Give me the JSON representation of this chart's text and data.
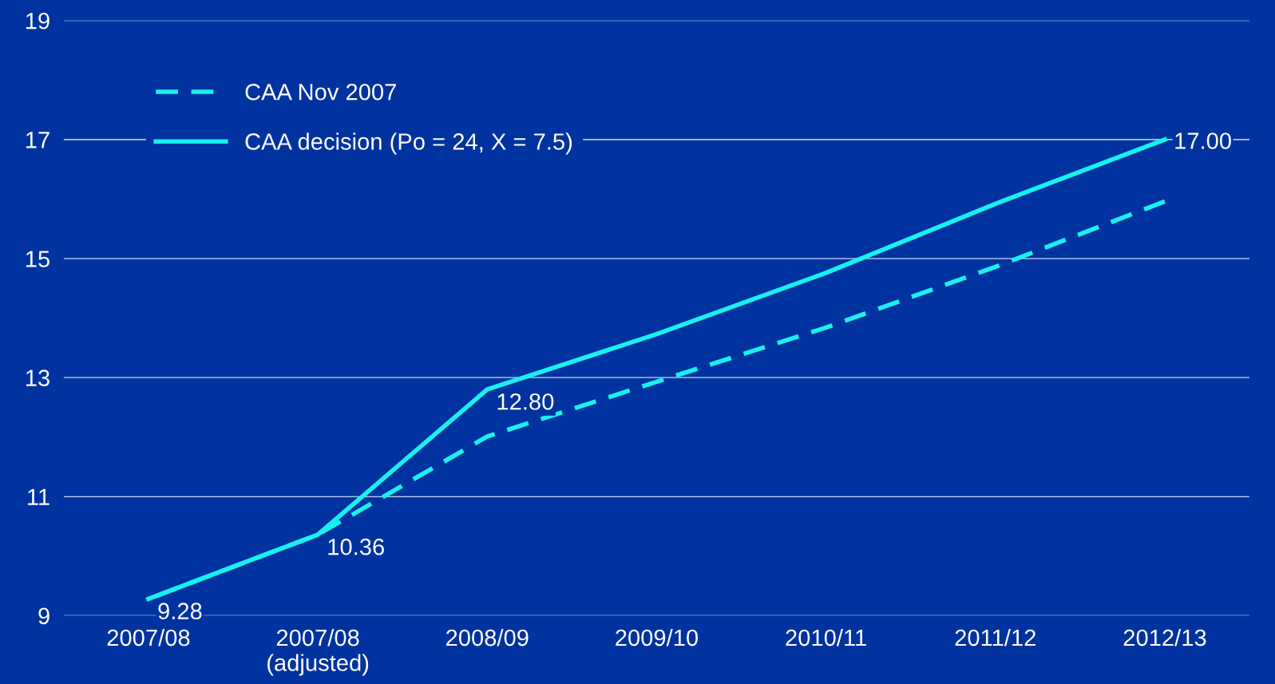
{
  "chart_data": {
    "type": "line",
    "categories": [
      "2007/08",
      "2007/08\n(adjusted)",
      "2008/09",
      "2009/10",
      "2010/11",
      "2011/12",
      "2012/13"
    ],
    "series": [
      {
        "name": "CAA Nov 2007",
        "color": "#19f0f0",
        "line_style": "dashed",
        "values": [
          9.28,
          10.36,
          12.01,
          12.93,
          13.84,
          14.86,
          15.96
        ]
      },
      {
        "name": "CAA decision (Po = 24, X = 7.5)",
        "color": "#19f0f0",
        "line_style": "solid",
        "values": [
          9.28,
          10.36,
          12.8,
          13.73,
          14.76,
          15.92,
          17.0
        ],
        "value_labels": [
          "9.28",
          "10.36",
          "12.80",
          null,
          null,
          null,
          "17.00"
        ]
      }
    ],
    "ylim": [
      9,
      19
    ],
    "yticks": [
      9,
      11,
      13,
      15,
      17,
      19
    ],
    "grid": "y",
    "legend": "top left",
    "marker": "none"
  }
}
